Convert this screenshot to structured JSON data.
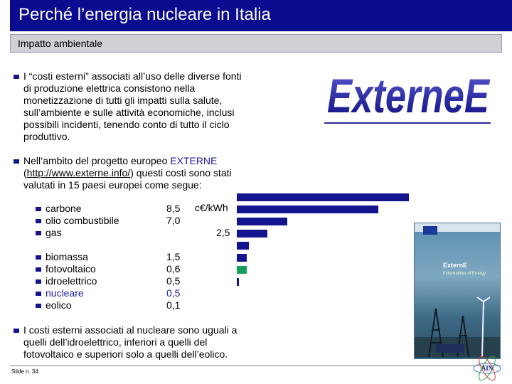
{
  "title": "Perché l’energia nucleare in Italia",
  "subtitle": "Impatto ambientale",
  "bullet1_lines": [
    "I “costi esterni” associati all’uso delle diverse fonti",
    "di produzione elettrica consistono nella",
    "monetizzazione di tutti gli impatti sulla salute,",
    "sull’ambiente e sulle attività economiche, inclusi",
    "possibili incidenti, tenendo conto di tutto il ciclo",
    "produttivo."
  ],
  "bullet2": {
    "line1_prefix": "Nell’ambito del progetto europeo ",
    "line1_highlight": "EXTERNE",
    "line2_prefix": "(",
    "line2_link": "http://www.externe.info/",
    "line2_suffix": ") questi costi sono stati",
    "line3": "valutati in 15 paesi europei come segue:"
  },
  "unit": "c€/kWh",
  "sources": [
    {
      "name": "carbone",
      "value": "8,5",
      "num": 8.5,
      "color": "#141490"
    },
    {
      "name": "olio combustibile",
      "value": "7,0",
      "num": 7.0,
      "color": "#141490"
    },
    {
      "name": "gas",
      "value": "2,5",
      "num": 2.5,
      "color": "#141490"
    },
    {
      "name": "biomassa",
      "value": "1,5",
      "num": 1.5,
      "color": "#141490"
    },
    {
      "name": "fotovoltaico",
      "value": "0,6",
      "num": 0.6,
      "color": "#141490"
    },
    {
      "name": "idroelettrico",
      "value": "0,5",
      "num": 0.5,
      "color": "#141490"
    },
    {
      "name": "nucleare",
      "value": "0,5",
      "num": 0.5,
      "color": "#17a05a",
      "highlight": true
    },
    {
      "name": "eolico",
      "value": "0,1",
      "num": 0.1,
      "color": "#141490"
    }
  ],
  "bullet3_lines": [
    "I costi esterni associati al nucleare sono uguali a",
    "quelli dell’idroelettrico, inferiori a quelli del",
    "fotovoltaico e superiori solo a quelli dell’eolico."
  ],
  "logo_text": "ExterneE",
  "book": {
    "title": "ExternE",
    "subtitle": "Externalities of Energy"
  },
  "footer": {
    "slide": "Slide n. 34",
    "badge": "AIN"
  }
}
